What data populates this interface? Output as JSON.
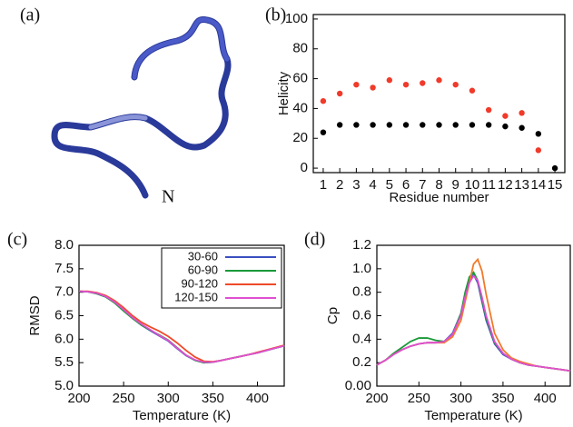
{
  "structure": {
    "label": "(a)",
    "annotation": "N"
  },
  "chart_data": [
    {
      "type": "scatter",
      "label": "(b)",
      "x_label": "Residue number",
      "y_label": "Helicity",
      "x": [
        1,
        2,
        3,
        4,
        5,
        6,
        7,
        8,
        9,
        10,
        11,
        12,
        13,
        14,
        15
      ],
      "series": [
        {
          "color": "#000000",
          "values": [
            24,
            29,
            29,
            29,
            29,
            29,
            29,
            29,
            29,
            29,
            29,
            28,
            27,
            23,
            0
          ]
        },
        {
          "color": "#f03a2a",
          "values": [
            45,
            50,
            56,
            54,
            59,
            56,
            57,
            59,
            56,
            52,
            39,
            35,
            37,
            12,
            null
          ]
        }
      ],
      "xlim": [
        0.4,
        15.6
      ],
      "ylim": [
        -3,
        103
      ],
      "xticks": [
        1,
        2,
        3,
        4,
        5,
        6,
        7,
        8,
        9,
        10,
        11,
        12,
        13,
        14,
        15
      ],
      "yticks": [
        0,
        20,
        40,
        60,
        80,
        100
      ]
    },
    {
      "type": "line",
      "label": "(c)",
      "x_label": "Temperature (K)",
      "y_label": "RMSD",
      "x": [
        200,
        210,
        220,
        230,
        240,
        250,
        260,
        270,
        280,
        290,
        300,
        310,
        320,
        330,
        340,
        350,
        360,
        370,
        380,
        390,
        400,
        410,
        420,
        430
      ],
      "series": [
        {
          "name": "30-60",
          "color": "#3a4fc0",
          "values": [
            7.02,
            7.01,
            6.97,
            6.9,
            6.78,
            6.62,
            6.45,
            6.3,
            6.18,
            6.07,
            5.96,
            5.8,
            5.65,
            5.55,
            5.5,
            5.51,
            5.55,
            5.59,
            5.63,
            5.67,
            5.71,
            5.76,
            5.81,
            5.86
          ]
        },
        {
          "name": "60-90",
          "color": "#1a9a3a",
          "values": [
            7.02,
            7.01,
            6.97,
            6.9,
            6.77,
            6.6,
            6.44,
            6.3,
            6.19,
            6.09,
            5.98,
            5.82,
            5.66,
            5.55,
            5.5,
            5.51,
            5.55,
            5.59,
            5.63,
            5.67,
            5.71,
            5.76,
            5.81,
            5.86
          ]
        },
        {
          "name": "90-120",
          "color": "#f04a2a",
          "values": [
            7.02,
            7.02,
            6.99,
            6.93,
            6.82,
            6.67,
            6.5,
            6.36,
            6.26,
            6.17,
            6.06,
            5.92,
            5.76,
            5.62,
            5.53,
            5.52,
            5.55,
            5.59,
            5.63,
            5.67,
            5.72,
            5.77,
            5.82,
            5.87
          ]
        },
        {
          "name": "120-150",
          "color": "#e050d0",
          "values": [
            7.02,
            7.01,
            6.98,
            6.91,
            6.79,
            6.63,
            6.46,
            6.32,
            6.2,
            6.08,
            5.97,
            5.81,
            5.66,
            5.56,
            5.51,
            5.51,
            5.55,
            5.59,
            5.63,
            5.67,
            5.71,
            5.76,
            5.81,
            5.86
          ]
        }
      ],
      "xlim": [
        200,
        430
      ],
      "ylim": [
        5.0,
        8.0
      ],
      "xticks": [
        200,
        250,
        300,
        350,
        400
      ],
      "yticks": [
        {
          "value": 5.0,
          "label": "5.0"
        },
        {
          "value": 5.5,
          "label": "5.5"
        },
        {
          "value": 6.0,
          "label": "6.0"
        },
        {
          "value": 6.5,
          "label": "6.5"
        },
        {
          "value": 7.0,
          "label": "7.0"
        },
        {
          "value": 7.5,
          "label": "7.5"
        },
        {
          "value": 8.0,
          "label": "8.0"
        }
      ],
      "legend": "upper right"
    },
    {
      "type": "line",
      "label": "(d)",
      "x_label": "Temperature (K)",
      "y_label": "Cp",
      "x": [
        200,
        210,
        220,
        230,
        240,
        250,
        260,
        270,
        280,
        290,
        300,
        305,
        310,
        315,
        320,
        325,
        330,
        340,
        350,
        360,
        370,
        380,
        390,
        400,
        410,
        420,
        430
      ],
      "series": [
        {
          "color": "#3a4fc0",
          "values": [
            0.18,
            0.22,
            0.27,
            0.31,
            0.34,
            0.36,
            0.37,
            0.37,
            0.38,
            0.45,
            0.62,
            0.78,
            0.9,
            0.95,
            0.88,
            0.72,
            0.56,
            0.36,
            0.27,
            0.23,
            0.2,
            0.18,
            0.17,
            0.16,
            0.15,
            0.14,
            0.13
          ]
        },
        {
          "color": "#1a9a3a",
          "values": [
            0.18,
            0.22,
            0.28,
            0.33,
            0.38,
            0.41,
            0.41,
            0.39,
            0.38,
            0.44,
            0.62,
            0.8,
            0.93,
            0.97,
            0.9,
            0.74,
            0.58,
            0.37,
            0.28,
            0.23,
            0.2,
            0.18,
            0.17,
            0.16,
            0.15,
            0.14,
            0.13
          ]
        },
        {
          "color": "#f07a2a",
          "values": [
            0.18,
            0.22,
            0.27,
            0.31,
            0.34,
            0.36,
            0.37,
            0.37,
            0.37,
            0.42,
            0.56,
            0.72,
            0.88,
            1.04,
            1.08,
            0.98,
            0.78,
            0.45,
            0.31,
            0.24,
            0.21,
            0.19,
            0.17,
            0.16,
            0.15,
            0.14,
            0.13
          ]
        },
        {
          "color": "#e050d0",
          "values": [
            0.18,
            0.22,
            0.27,
            0.31,
            0.34,
            0.36,
            0.37,
            0.37,
            0.38,
            0.44,
            0.6,
            0.76,
            0.88,
            0.94,
            0.9,
            0.76,
            0.6,
            0.38,
            0.28,
            0.23,
            0.2,
            0.18,
            0.17,
            0.16,
            0.15,
            0.14,
            0.13
          ]
        }
      ],
      "xlim": [
        200,
        430
      ],
      "ylim": [
        0,
        1.2
      ],
      "xticks": [
        200,
        250,
        300,
        350,
        400
      ],
      "yticks": [
        {
          "value": 0,
          "label": "0.00"
        },
        {
          "value": 0.2,
          "label": "0.2"
        },
        {
          "value": 0.4,
          "label": "0.4"
        },
        {
          "value": 0.6,
          "label": "0.6"
        },
        {
          "value": 0.8,
          "label": "0.8"
        },
        {
          "value": 1.0,
          "label": "1.0"
        },
        {
          "value": 1.2,
          "label": "1.2"
        }
      ]
    }
  ]
}
